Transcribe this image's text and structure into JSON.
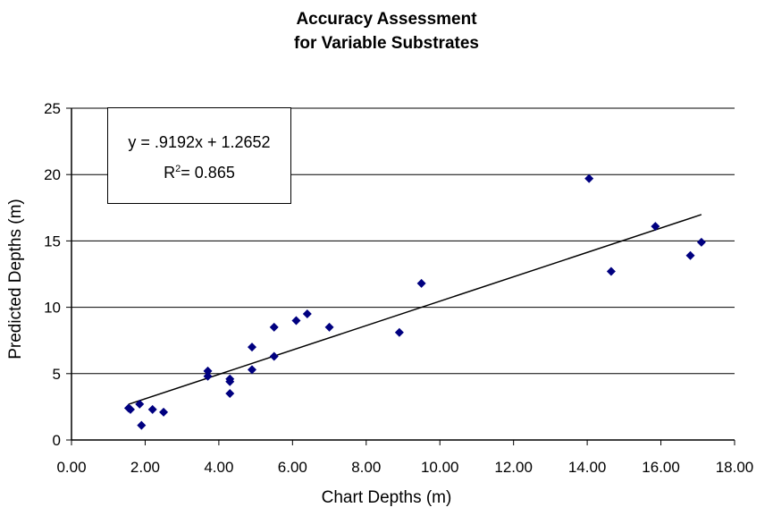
{
  "chart_data": {
    "type": "scatter",
    "title": [
      "Accuracy Assessment",
      "for Variable Substrates"
    ],
    "xlabel": "Chart Depths (m)",
    "ylabel": "Predicted Depths (m)",
    "xlim": [
      0,
      18
    ],
    "ylim": [
      0,
      25
    ],
    "xticks": [
      "0.00",
      "2.00",
      "4.00",
      "6.00",
      "8.00",
      "10.00",
      "12.00",
      "14.00",
      "16.00",
      "18.00"
    ],
    "yticks": [
      "0",
      "5",
      "10",
      "15",
      "20",
      "25"
    ],
    "grid": "horizontal",
    "marker_color": "#000080",
    "points": [
      {
        "x": 1.55,
        "y": 2.4
      },
      {
        "x": 1.6,
        "y": 2.3
      },
      {
        "x": 1.85,
        "y": 2.7
      },
      {
        "x": 1.9,
        "y": 1.1
      },
      {
        "x": 2.2,
        "y": 2.3
      },
      {
        "x": 2.5,
        "y": 2.1
      },
      {
        "x": 3.7,
        "y": 5.2
      },
      {
        "x": 3.7,
        "y": 4.8
      },
      {
        "x": 4.3,
        "y": 4.6
      },
      {
        "x": 4.3,
        "y": 4.4
      },
      {
        "x": 4.3,
        "y": 3.5
      },
      {
        "x": 4.9,
        "y": 7.0
      },
      {
        "x": 4.9,
        "y": 5.3
      },
      {
        "x": 5.5,
        "y": 8.5
      },
      {
        "x": 5.5,
        "y": 6.3
      },
      {
        "x": 6.1,
        "y": 9.0
      },
      {
        "x": 6.4,
        "y": 9.5
      },
      {
        "x": 7.0,
        "y": 8.5
      },
      {
        "x": 8.9,
        "y": 8.1
      },
      {
        "x": 9.5,
        "y": 11.8
      },
      {
        "x": 14.05,
        "y": 19.7
      },
      {
        "x": 14.65,
        "y": 12.7
      },
      {
        "x": 15.85,
        "y": 16.1
      },
      {
        "x": 16.8,
        "y": 13.9
      },
      {
        "x": 17.1,
        "y": 14.9
      }
    ],
    "trendline": {
      "slope": 0.9192,
      "intercept": 1.2652,
      "x_range": [
        1.55,
        17.1
      ]
    },
    "annotation": {
      "equation": "y = .9192x + 1.2652",
      "r2_prefix": "R",
      "r2_sup": "2",
      "r2_rest": "= 0.865"
    }
  }
}
